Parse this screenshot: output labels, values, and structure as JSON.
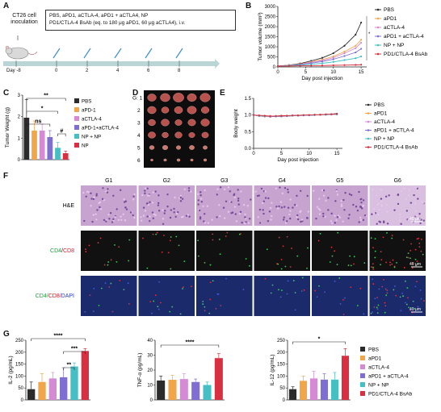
{
  "colors": {
    "pbs": "#2b2b2b",
    "apd1": "#f2a64a",
    "actla4": "#d68ad6",
    "combo": "#7f6fd2",
    "np": "#45bfc4",
    "bsab": "#d83040"
  },
  "panel_a": {
    "letter": "A",
    "cell_label": "CT26 cell\ninoculation",
    "treat_line1": "PBS, aPD1, aCTLA-4, aPD1 + aCTLA4, NP",
    "treat_line2": "PD1/CTLA-4 BsAb (eq. to 180 μg aPD1, 60 μg aCTLA4), i.v.",
    "days": [
      "Day -8",
      "0",
      "2",
      "4",
      "6",
      "8"
    ]
  },
  "panel_b": {
    "letter": "B",
    "chart_data": {
      "type": "line",
      "xlabel": "Day post injection",
      "ylabel": "Tumor volume (mm³)",
      "xlim": [
        0,
        16
      ],
      "ylim": [
        0,
        3000
      ],
      "xticks": [
        0,
        5,
        10,
        15
      ],
      "yticks": [
        0,
        500,
        1000,
        1500,
        2000,
        2500,
        3000
      ],
      "x": [
        0,
        2,
        4,
        6,
        8,
        10,
        12,
        14,
        15
      ],
      "series": [
        {
          "name": "PBS",
          "values": [
            40,
            90,
            170,
            300,
            450,
            680,
            1050,
            1600,
            2200
          ]
        },
        {
          "name": "aPD1",
          "values": [
            40,
            80,
            140,
            250,
            360,
            520,
            760,
            1050,
            1350
          ]
        },
        {
          "name": "aCTLA-4",
          "values": [
            40,
            75,
            130,
            230,
            320,
            460,
            680,
            930,
            1200
          ]
        },
        {
          "name": "aPD1 + aCTLA-4",
          "values": [
            40,
            70,
            115,
            190,
            270,
            380,
            540,
            720,
            900
          ]
        },
        {
          "name": "NP + NP",
          "values": [
            40,
            60,
            90,
            130,
            180,
            250,
            340,
            430,
            520
          ]
        },
        {
          "name": "PD1/CTLA-4 BsAb",
          "values": [
            40,
            45,
            55,
            65,
            70,
            80,
            90,
            100,
            110
          ]
        }
      ],
      "legend_position": "right"
    }
  },
  "panel_c": {
    "letter": "C",
    "chart_data": {
      "type": "bar",
      "ylabel": "Tumor Weight (g)",
      "ylim": [
        0,
        3
      ],
      "yticks": [
        0,
        1,
        2,
        3
      ],
      "categories": [
        "PBS",
        "aPD-1",
        "aCTLA-4",
        "aPD-1+aCTLA-4",
        "NP + NP",
        "NP"
      ],
      "values": [
        1.95,
        1.35,
        1.35,
        1.05,
        0.55,
        0.3
      ],
      "errors": [
        0.85,
        0.45,
        0.3,
        0.3,
        0.25,
        0.1
      ],
      "legend_position": "right"
    },
    "sig": [
      "**",
      "*",
      "ns",
      "#"
    ]
  },
  "panel_d": {
    "letter": "D",
    "group_prefix": "G: 1",
    "rows": [
      "2",
      "3",
      "4",
      "5",
      "6"
    ]
  },
  "panel_e": {
    "letter": "E",
    "chart_data": {
      "type": "line",
      "xlabel": "Day post injection",
      "ylabel": "Body weight",
      "xlim": [
        0,
        16
      ],
      "ylim": [
        0.0,
        1.5
      ],
      "xticks": [
        0,
        5,
        10,
        15
      ],
      "yticks": [
        "0.0",
        "0.5",
        "1.0",
        "1.5"
      ],
      "x": [
        0,
        1,
        2,
        3,
        4,
        5,
        6,
        7,
        8,
        9,
        10,
        11,
        12,
        13,
        14,
        15
      ],
      "series": [
        {
          "name": "PBS",
          "values": [
            1.0,
            0.97,
            0.96,
            0.95,
            0.96,
            0.96,
            0.97,
            0.98,
            0.98,
            0.99,
            1.0,
            1.0,
            1.01,
            1.02,
            1.03,
            1.04
          ]
        },
        {
          "name": "aPD1",
          "values": [
            1.0,
            0.98,
            0.95,
            0.96,
            0.97,
            0.97,
            0.97,
            0.98,
            0.99,
            0.99,
            1.0,
            1.0,
            1.01,
            1.02,
            1.02,
            1.03
          ]
        },
        {
          "name": "aCTLA-4",
          "values": [
            1.0,
            0.97,
            0.96,
            0.96,
            0.96,
            0.97,
            0.98,
            0.98,
            0.98,
            0.99,
            1.0,
            1.01,
            1.01,
            1.02,
            1.03,
            1.03
          ]
        },
        {
          "name": "aPD1 + aCTLA-4",
          "values": [
            1.0,
            0.98,
            0.97,
            0.96,
            0.96,
            0.97,
            0.97,
            0.98,
            0.99,
            0.99,
            0.99,
            1.0,
            1.01,
            1.01,
            1.02,
            1.02
          ]
        },
        {
          "name": "NP + NP",
          "values": [
            1.0,
            0.98,
            0.97,
            0.97,
            0.97,
            0.98,
            0.98,
            0.98,
            0.99,
            1.0,
            1.0,
            1.0,
            1.01,
            1.01,
            1.02,
            1.02
          ]
        },
        {
          "name": "PD1/CTLA-4 BsAb",
          "values": [
            1.0,
            0.99,
            0.98,
            0.97,
            0.97,
            0.98,
            0.98,
            0.99,
            0.99,
            1.0,
            1.0,
            1.01,
            1.01,
            1.02,
            1.02,
            1.03
          ]
        }
      ],
      "legend_position": "right"
    }
  },
  "panel_f": {
    "letter": "F",
    "groups": [
      "G1",
      "G2",
      "G3",
      "G4",
      "G5",
      "G6"
    ],
    "rows": [
      "H&E",
      "CD4/CD8",
      "CD4/CD8/DAPI"
    ],
    "scale": "40 μm"
  },
  "panel_g": {
    "letter": "G",
    "charts": [
      {
        "type": "bar",
        "ylabel": "IL-2 (pg/mL)",
        "ylim": [
          0,
          250
        ],
        "yticks": [
          0,
          50,
          100,
          150,
          200,
          250
        ],
        "values": [
          45,
          75,
          90,
          95,
          140,
          205
        ],
        "errors": [
          30,
          35,
          25,
          40,
          15,
          10
        ],
        "sig": [
          "****",
          "***",
          "**"
        ]
      },
      {
        "type": "bar",
        "ylabel": "TNF-α (pg/mL)",
        "ylim": [
          0,
          40
        ],
        "yticks": [
          0,
          10,
          20,
          30,
          40
        ],
        "values": [
          13,
          13.5,
          14,
          12,
          10,
          28
        ],
        "errors": [
          3,
          3,
          3.5,
          2,
          2,
          3
        ],
        "sig": [
          "****"
        ]
      },
      {
        "type": "bar",
        "ylabel": "IL-12 (pg/mL)",
        "ylim": [
          0,
          250
        ],
        "yticks": [
          0,
          50,
          100,
          150,
          200,
          250
        ],
        "values": [
          45,
          80,
          90,
          85,
          85,
          185
        ],
        "errors": [
          10,
          20,
          30,
          25,
          30,
          30
        ],
        "sig": [
          "*"
        ]
      }
    ],
    "legend": [
      "PBS",
      "aPD1",
      "aCTLA-4",
      "aPD1 + aCTLA-4",
      "NP + NP",
      "PD1/CTLA-4 BsAb"
    ]
  }
}
